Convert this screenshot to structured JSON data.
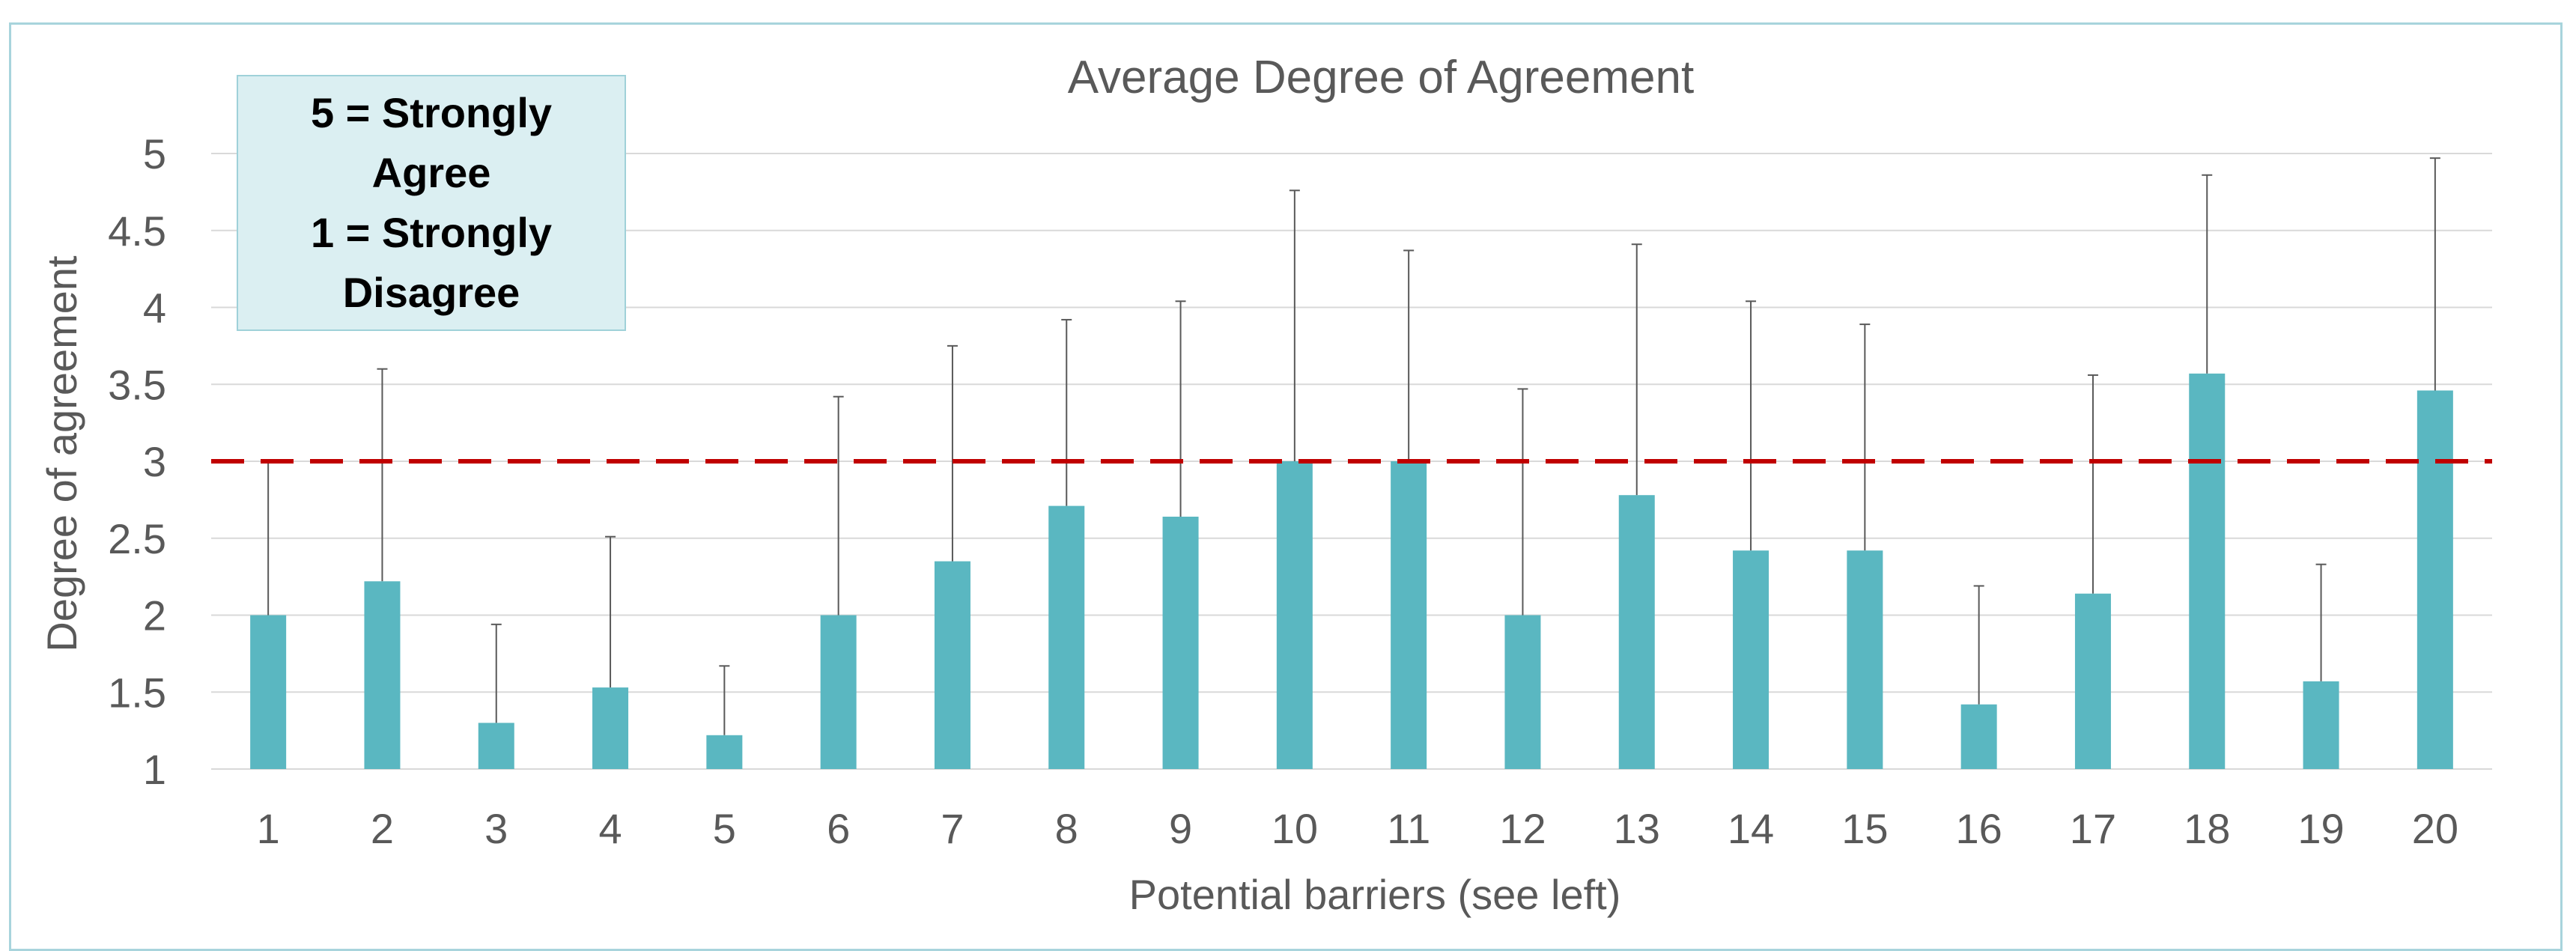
{
  "colors": {
    "bar": "#5ab7c1",
    "threshold": "#c00000",
    "grid": "#d9d9d9",
    "text": "#595959",
    "note_background": "#dbeff2",
    "note_border": "#9fd1d9",
    "frame_border": "#a8d4dc"
  },
  "note": {
    "line1": "5 = Strongly",
    "line2": "Agree",
    "line3": "1 = Strongly",
    "line4": "Disagree"
  },
  "chart_data": {
    "type": "bar",
    "title": "Average Degree of Agreement",
    "xlabel": "Potential barriers (see left)",
    "ylabel": "Degree of agreement",
    "ylim": [
      1,
      5
    ],
    "yticks": [
      "1",
      "1.5",
      "2",
      "2.5",
      "3",
      "3.5",
      "4",
      "4.5",
      "5"
    ],
    "grid": true,
    "legend": "none",
    "categories": [
      "1",
      "2",
      "3",
      "4",
      "5",
      "6",
      "7",
      "8",
      "9",
      "10",
      "11",
      "12",
      "13",
      "14",
      "15",
      "16",
      "17",
      "18",
      "19",
      "20"
    ],
    "values": [
      2.0,
      2.22,
      1.3,
      1.53,
      1.22,
      2.0,
      2.35,
      2.71,
      2.64,
      3.0,
      3.0,
      2.0,
      2.78,
      2.42,
      2.42,
      1.42,
      2.14,
      3.57,
      1.57,
      3.46
    ],
    "error_upper": [
      3.0,
      3.6,
      1.94,
      2.51,
      1.67,
      3.42,
      3.75,
      3.92,
      4.04,
      4.76,
      4.37,
      3.47,
      4.41,
      4.04,
      3.89,
      2.19,
      3.56,
      4.86,
      2.33,
      4.97
    ],
    "reference_line": {
      "y": 3,
      "style": "dashed"
    }
  }
}
